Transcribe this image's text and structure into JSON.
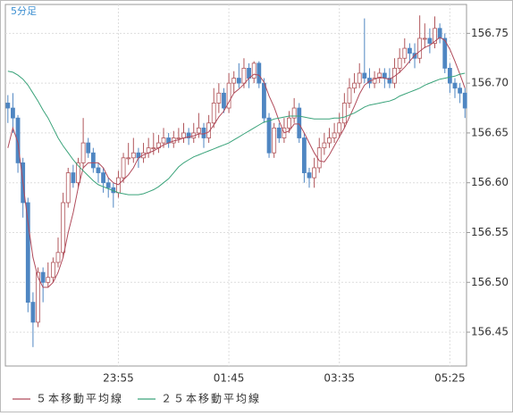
{
  "chart_data": {
    "type": "candlestick",
    "title": "5分足",
    "categories": [
      null,
      null,
      null,
      null,
      null,
      null,
      null,
      null,
      null,
      null,
      null,
      null,
      null,
      null,
      null,
      null,
      null,
      null,
      null,
      null,
      null,
      null,
      "23:55",
      null,
      null,
      null,
      null,
      null,
      null,
      null,
      null,
      null,
      null,
      null,
      null,
      null,
      null,
      null,
      null,
      null,
      null,
      null,
      null,
      null,
      "01:45",
      null,
      null,
      null,
      null,
      null,
      null,
      null,
      null,
      null,
      null,
      null,
      null,
      null,
      null,
      null,
      null,
      null,
      null,
      null,
      null,
      null,
      "03:35",
      null,
      null,
      null,
      null,
      null,
      null,
      null,
      null,
      null,
      null,
      null,
      null,
      null,
      null,
      null,
      null,
      null,
      null,
      null,
      null,
      null,
      "05:25",
      null,
      null,
      null
    ],
    "open": [
      156.68,
      156.675,
      156.665,
      156.62,
      156.58,
      156.48,
      156.46,
      156.51,
      156.5,
      156.505,
      156.52,
      156.53,
      156.58,
      156.61,
      156.6,
      156.62,
      156.64,
      156.63,
      156.615,
      156.61,
      156.6,
      156.595,
      156.59,
      156.605,
      156.625,
      156.625,
      156.63,
      156.625,
      156.63,
      156.635,
      156.635,
      156.64,
      156.645,
      156.64,
      156.645,
      156.645,
      156.65,
      156.645,
      156.65,
      156.655,
      156.645,
      156.66,
      156.68,
      156.69,
      156.675,
      156.7,
      156.705,
      156.7,
      156.715,
      156.705,
      156.72,
      156.7,
      156.665,
      156.63,
      156.655,
      156.645,
      156.655,
      156.665,
      156.675,
      156.645,
      156.61,
      156.605,
      156.615,
      156.635,
      156.64,
      156.645,
      156.65,
      156.66,
      156.68,
      156.695,
      156.7,
      156.71,
      156.705,
      156.7,
      156.705,
      156.71,
      156.705,
      156.7,
      156.715,
      156.725,
      156.735,
      156.73,
      156.725,
      156.745,
      156.745,
      156.74,
      156.755,
      156.745,
      156.715,
      156.7,
      156.695,
      156.69
    ],
    "high": [
      156.688,
      156.69,
      156.668,
      156.625,
      156.585,
      156.49,
      156.515,
      156.515,
      156.52,
      156.525,
      156.545,
      156.59,
      156.615,
      156.618,
      156.625,
      156.665,
      156.645,
      156.635,
      156.62,
      156.615,
      156.605,
      156.6,
      156.612,
      156.63,
      156.64,
      156.645,
      156.635,
      156.64,
      156.645,
      156.65,
      156.648,
      156.655,
      156.65,
      156.652,
      156.655,
      156.66,
      156.655,
      156.66,
      156.67,
      156.66,
      156.668,
      156.695,
      156.7,
      156.695,
      156.71,
      156.712,
      156.72,
      156.725,
      156.72,
      156.722,
      156.722,
      156.705,
      156.67,
      156.66,
      156.66,
      156.665,
      156.672,
      156.685,
      156.68,
      156.65,
      156.615,
      156.625,
      156.645,
      156.65,
      156.655,
      156.66,
      156.67,
      156.69,
      156.705,
      156.71,
      156.72,
      156.765,
      156.715,
      156.712,
      156.715,
      156.715,
      156.715,
      156.725,
      156.735,
      156.745,
      156.74,
      156.74,
      156.768,
      156.76,
      156.755,
      156.767,
      156.76,
      156.75,
      156.72,
      156.705,
      156.7,
      156.695
    ],
    "low": [
      156.66,
      156.65,
      156.61,
      156.565,
      156.47,
      156.435,
      156.455,
      156.48,
      156.495,
      156.5,
      156.515,
      156.525,
      156.575,
      156.595,
      156.595,
      156.615,
      156.625,
      156.61,
      156.6,
      156.59,
      156.585,
      156.575,
      156.585,
      156.6,
      156.618,
      156.62,
      156.615,
      156.62,
      156.625,
      156.628,
      156.63,
      156.635,
      156.635,
      156.635,
      156.64,
      156.64,
      156.638,
      156.64,
      156.645,
      156.635,
      156.64,
      156.655,
      156.67,
      156.67,
      156.67,
      156.69,
      156.695,
      156.695,
      156.695,
      156.7,
      156.695,
      156.66,
      156.625,
      156.625,
      156.64,
      156.64,
      156.65,
      156.66,
      156.64,
      156.6,
      156.595,
      156.595,
      156.61,
      156.628,
      156.635,
      156.64,
      156.645,
      156.655,
      156.675,
      156.69,
      156.695,
      156.7,
      156.695,
      156.695,
      156.7,
      156.695,
      156.695,
      156.695,
      156.71,
      156.72,
      156.72,
      156.715,
      156.72,
      156.735,
      156.73,
      156.735,
      156.74,
      156.71,
      156.69,
      156.685,
      156.68,
      156.665
    ],
    "close": [
      156.675,
      156.665,
      156.62,
      156.58,
      156.48,
      156.46,
      156.51,
      156.5,
      156.505,
      156.52,
      156.53,
      156.58,
      156.61,
      156.6,
      156.62,
      156.64,
      156.63,
      156.615,
      156.61,
      156.6,
      156.595,
      156.59,
      156.605,
      156.625,
      156.625,
      156.63,
      156.625,
      156.63,
      156.635,
      156.635,
      156.64,
      156.645,
      156.64,
      156.645,
      156.645,
      156.65,
      156.645,
      156.65,
      156.655,
      156.645,
      156.66,
      156.68,
      156.69,
      156.675,
      156.7,
      156.705,
      156.7,
      156.715,
      156.705,
      156.72,
      156.7,
      156.665,
      156.63,
      156.655,
      156.645,
      156.655,
      156.665,
      156.675,
      156.645,
      156.61,
      156.605,
      156.615,
      156.635,
      156.64,
      156.645,
      156.65,
      156.66,
      156.68,
      156.695,
      156.7,
      156.71,
      156.705,
      156.7,
      156.705,
      156.71,
      156.705,
      156.7,
      156.715,
      156.725,
      156.735,
      156.73,
      156.725,
      156.745,
      156.745,
      156.74,
      156.755,
      156.745,
      156.715,
      156.7,
      156.695,
      156.69,
      156.675
    ],
    "up_color": "#b0555a",
    "down_color": "#4f86c2",
    "series": [
      {
        "name": "５本移動平均線",
        "color": "#b04a5a",
        "values": [
          156.635,
          156.655,
          156.64,
          156.6,
          156.56,
          156.525,
          156.505,
          156.495,
          156.495,
          156.5,
          156.51,
          156.525,
          156.55,
          156.57,
          156.595,
          156.615,
          156.62,
          156.62,
          156.62,
          156.615,
          156.605,
          156.6,
          156.598,
          156.603,
          156.608,
          156.615,
          156.625,
          156.628,
          156.63,
          156.632,
          156.635,
          156.638,
          156.64,
          156.642,
          156.643,
          156.645,
          156.646,
          156.647,
          156.649,
          156.649,
          156.651,
          156.658,
          156.666,
          156.672,
          156.681,
          156.69,
          156.694,
          156.699,
          156.705,
          156.709,
          156.708,
          156.701,
          156.687,
          156.676,
          156.662,
          156.65,
          156.652,
          156.659,
          156.659,
          156.65,
          156.64,
          156.63,
          156.622,
          156.621,
          156.628,
          156.637,
          156.646,
          156.655,
          156.666,
          156.677,
          156.689,
          156.698,
          156.702,
          156.704,
          156.706,
          156.705,
          156.704,
          156.707,
          156.711,
          156.716,
          156.722,
          156.728,
          156.732,
          156.736,
          156.738,
          156.742,
          156.746,
          156.743,
          156.734,
          156.722,
          156.709,
          156.695
        ]
      },
      {
        "name": "２５本移動平均線",
        "color": "#3aa37a",
        "values": [
          156.712,
          156.711,
          156.708,
          156.704,
          156.698,
          156.69,
          156.682,
          156.673,
          156.665,
          156.655,
          156.645,
          156.637,
          156.63,
          156.623,
          156.617,
          156.612,
          156.607,
          156.602,
          156.598,
          156.596,
          156.594,
          156.592,
          156.59,
          156.589,
          156.588,
          156.588,
          156.588,
          156.589,
          156.591,
          156.593,
          156.596,
          156.6,
          156.604,
          156.61,
          156.616,
          156.62,
          156.623,
          156.626,
          156.628,
          156.63,
          156.632,
          156.634,
          156.636,
          156.638,
          156.64,
          156.643,
          156.646,
          156.649,
          156.652,
          156.655,
          156.658,
          156.661,
          156.662,
          156.664,
          156.665,
          156.666,
          156.667,
          156.667,
          156.667,
          156.666,
          156.665,
          156.664,
          156.664,
          156.664,
          156.664,
          156.665,
          156.665,
          156.666,
          156.668,
          156.67,
          156.673,
          156.676,
          156.678,
          156.679,
          156.68,
          156.681,
          156.682,
          156.684,
          156.687,
          156.689,
          156.691,
          156.693,
          156.695,
          156.698,
          156.7,
          156.702,
          156.704,
          156.705,
          156.706,
          156.707,
          156.709,
          156.71
        ]
      }
    ],
    "ylim": [
      156.416,
      156.779
    ],
    "yticks": [
      156.45,
      {
        "value": 156.5,
        "label": "156.50"
      },
      156.55,
      {
        "value": 156.6,
        "label": "156.60"
      },
      156.65,
      {
        "value": 156.7,
        "label": "156.70"
      },
      156.75
    ],
    "grid": true
  }
}
